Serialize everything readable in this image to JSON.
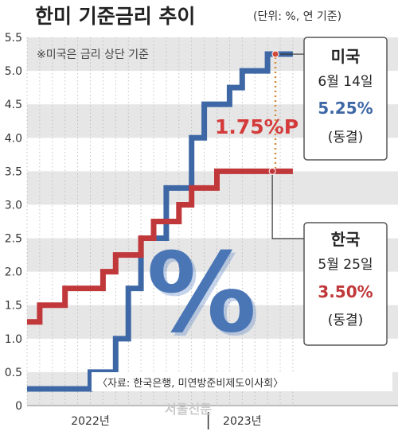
{
  "title": "한미 기준금리 추이",
  "unit_note": "(단위: %, 연 기준)",
  "note": "※미국은 금리 상단 기준",
  "source": "〈자료: 한국은행, 미연방준비제도이사회〉",
  "watermark": "서울신문",
  "percent_symbol": "%",
  "spread_label": "1.75%P",
  "colors": {
    "us": "#3e67a6",
    "korea": "#c0383a",
    "spread": "#d43a3a",
    "stripe": "#e6e6e6"
  },
  "us_box": {
    "country": "미국",
    "date": "6월 14일",
    "rate": "5.25%",
    "status": "(동결)"
  },
  "korea_box": {
    "country": "한국",
    "date": "5월 25일",
    "rate": "3.50%",
    "status": "(동결)"
  },
  "chart_data": {
    "type": "line",
    "step": true,
    "ylim": [
      0,
      5.5
    ],
    "yticks": [
      "0",
      "0.5",
      "1.0",
      "1.5",
      "2.0",
      "2.5",
      "3.0",
      "3.5",
      "4.0",
      "4.5",
      "5.0",
      "5.5"
    ],
    "xticks": [
      "2022년",
      "2023년"
    ],
    "xlim": [
      "2021-10",
      "2023-07"
    ],
    "series": [
      {
        "name": "미국",
        "points": [
          [
            "2021-10",
            0.25
          ],
          [
            "2022-03",
            0.5
          ],
          [
            "2022-05",
            1.0
          ],
          [
            "2022-06",
            1.75
          ],
          [
            "2022-07",
            2.5
          ],
          [
            "2022-09",
            3.25
          ],
          [
            "2022-11",
            4.0
          ],
          [
            "2022-12",
            4.5
          ],
          [
            "2023-02",
            4.75
          ],
          [
            "2023-03",
            5.0
          ],
          [
            "2023-05",
            5.25
          ],
          [
            "2023-07",
            5.25
          ]
        ]
      },
      {
        "name": "한국",
        "points": [
          [
            "2021-10",
            1.25
          ],
          [
            "2021-11",
            1.5
          ],
          [
            "2022-01",
            1.75
          ],
          [
            "2022-04",
            2.0
          ],
          [
            "2022-05",
            2.25
          ],
          [
            "2022-07",
            2.5
          ],
          [
            "2022-08",
            2.75
          ],
          [
            "2022-10",
            3.0
          ],
          [
            "2022-11",
            3.25
          ],
          [
            "2023-01",
            3.5
          ],
          [
            "2023-07",
            3.5
          ]
        ]
      }
    ]
  }
}
